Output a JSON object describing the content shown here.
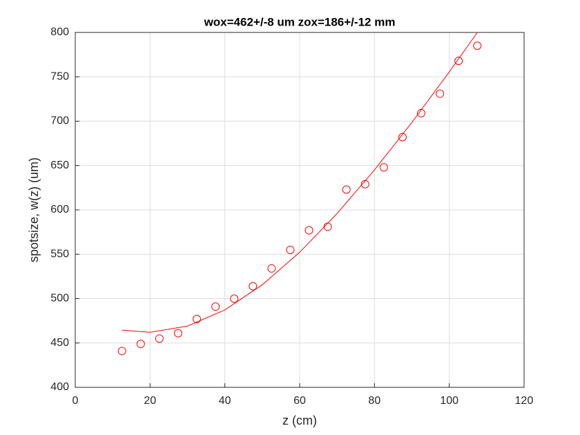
{
  "chart_data": {
    "type": "scatter-fit",
    "title": "wox=462+/-8 um zox=186+/-12 mm",
    "x_label": "z (cm)",
    "y_label": "spotsize, w(z) (um)",
    "xlim": [
      0,
      120
    ],
    "xticks": [
      0,
      20,
      40,
      60,
      80,
      100,
      120
    ],
    "ylim": [
      400,
      800
    ],
    "yticks": [
      400,
      450,
      500,
      550,
      600,
      650,
      700,
      750,
      800
    ],
    "grid": true,
    "series": [
      {
        "kind": "marker",
        "color": "#ff0000",
        "x": [
          12.5,
          17.5,
          22.5,
          27.5,
          32.5,
          37.5,
          42.5,
          47.5,
          52.5,
          57.5,
          62.5,
          67.5,
          72.5,
          77.5,
          82.5,
          87.5,
          92.5,
          97.5,
          102.5,
          107.5
        ],
        "values": [
          441,
          449,
          455,
          461,
          477,
          491,
          500,
          514,
          534,
          555,
          577,
          581,
          623,
          629,
          648,
          682,
          709,
          731,
          768,
          785
        ]
      },
      {
        "kind": "line",
        "color": "#ff0000",
        "x": [
          12.5,
          20,
          30,
          40,
          50,
          60,
          70,
          80,
          90,
          100,
          107.5
        ],
        "values": [
          464.5,
          462.1,
          469.1,
          487.3,
          515.6,
          552.3,
          595.9,
          645.1,
          698.6,
          755.5,
          800
        ]
      }
    ]
  }
}
